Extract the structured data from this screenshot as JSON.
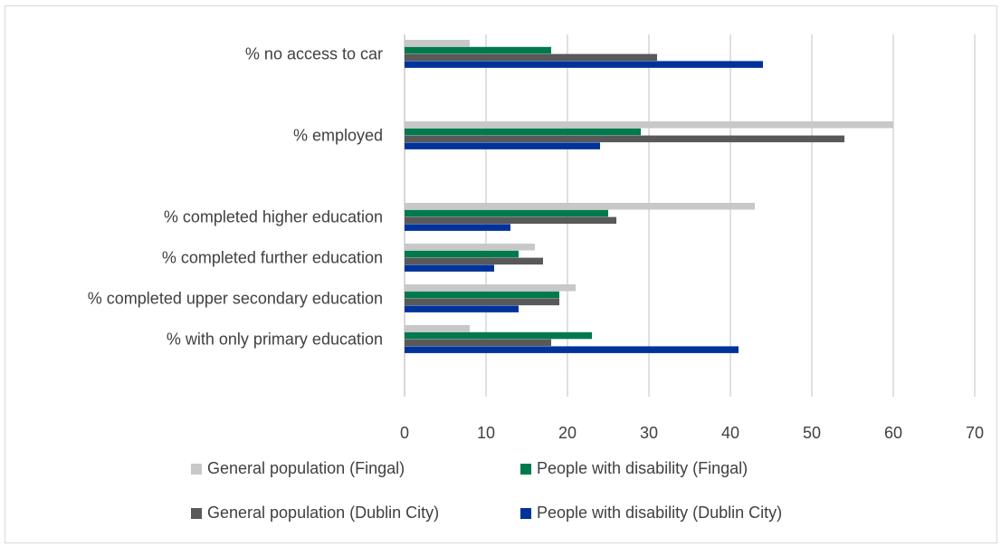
{
  "chart_data": {
    "type": "bar",
    "orientation": "horizontal",
    "categories": [
      "% no access to car",
      "% employed",
      "% completed higher education",
      "% completed further education",
      "% completed upper secondary education",
      "% with only primary education"
    ],
    "series": [
      {
        "name": "General population (Fingal)",
        "color": "#c8c8c8",
        "values": [
          8,
          60,
          43,
          16,
          21,
          8
        ]
      },
      {
        "name": "People with disability (Fingal)",
        "color": "#007a4d",
        "values": [
          18,
          29,
          25,
          14,
          19,
          23
        ]
      },
      {
        "name": "General population (Dublin City)",
        "color": "#595959",
        "values": [
          31,
          54,
          26,
          17,
          19,
          18
        ]
      },
      {
        "name": "People with disability (Dublin City)",
        "color": "#003399",
        "values": [
          44,
          24,
          13,
          11,
          14,
          41
        ]
      }
    ],
    "xlim": [
      0,
      70
    ],
    "xticks": [
      "0",
      "10",
      "20",
      "30",
      "40",
      "50",
      "60",
      "70"
    ],
    "grid": "vertical",
    "legend_position": "bottom"
  }
}
